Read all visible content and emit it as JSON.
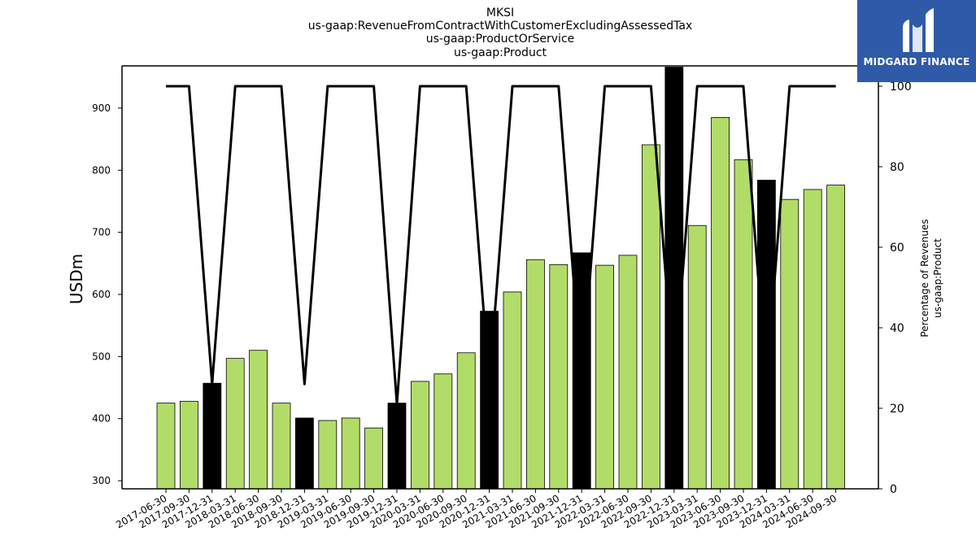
{
  "header": {
    "lines": [
      "MKSI",
      "us-gaap:RevenueFromContractWithCustomerExcludingAssessedTax",
      "us-gaap:ProductOrService",
      "us-gaap:Product"
    ]
  },
  "brand": {
    "name": "MIDGARD FINANCE",
    "bg_color": "#2f5aa8"
  },
  "chart_data": {
    "type": "bar",
    "ylabel": "USDm",
    "ylabel_right": [
      "Percentage of Revenues",
      "us-gaap:Product"
    ],
    "ylim": [
      287,
      968
    ],
    "ylim_right": [
      0,
      100
    ],
    "yticks": [
      300,
      400,
      500,
      600,
      700,
      800,
      900
    ],
    "yticks_right": [
      0,
      20,
      40,
      60,
      80,
      100
    ],
    "grid": false,
    "colors": {
      "quarter": "#b2dc68",
      "annual": "#000000",
      "line": "#000000"
    },
    "categories": [
      "2017-06-30",
      "2017-09-30",
      "2017-12-31",
      "2018-03-31",
      "2018-06-30",
      "2018-09-30",
      "2018-12-31",
      "2019-03-31",
      "2019-06-30",
      "2019-09-30",
      "2019-12-31",
      "2020-03-31",
      "2020-06-30",
      "2020-09-30",
      "2020-12-31",
      "2021-03-31",
      "2021-06-30",
      "2021-09-30",
      "2021-12-31",
      "2022-03-31",
      "2022-06-30",
      "2022-09-30",
      "2022-12-31",
      "2023-03-31",
      "2023-06-30",
      "2023-09-30",
      "2023-12-31",
      "2024-03-31",
      "2024-06-30",
      "2024-09-30"
    ],
    "values": [
      425,
      428,
      457,
      497,
      510,
      425,
      401,
      397,
      401,
      385,
      425,
      460,
      472,
      506,
      573,
      604,
      656,
      648,
      667,
      647,
      663,
      841,
      966,
      711,
      885,
      817,
      784,
      753,
      769,
      776
    ],
    "annual_flags": [
      false,
      false,
      true,
      false,
      false,
      false,
      true,
      false,
      false,
      false,
      true,
      false,
      false,
      false,
      true,
      false,
      false,
      false,
      true,
      false,
      false,
      false,
      true,
      false,
      false,
      false,
      true,
      false,
      false,
      false
    ],
    "series": [
      {
        "values": [
          425,
          428,
          457,
          497,
          510,
          425,
          401,
          397,
          401,
          385,
          425,
          460,
          472,
          506,
          573,
          604,
          656,
          648,
          667,
          647,
          663,
          841,
          966,
          711,
          885,
          817,
          784,
          753,
          769,
          776
        ]
      },
      {
        "axis": "right",
        "values": [
          100,
          100,
          26,
          100,
          100,
          100,
          26,
          100,
          100,
          100,
          21,
          100,
          100,
          100,
          26,
          100,
          100,
          100,
          26,
          100,
          100,
          100,
          26,
          100,
          100,
          100,
          26,
          100,
          100,
          100
        ]
      }
    ]
  }
}
